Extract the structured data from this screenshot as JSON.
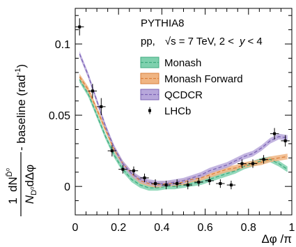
{
  "chart_data": {
    "type": "line",
    "title": "",
    "annotations": {
      "generator": "PYTHIA8",
      "system": "pp,",
      "sqrt": "√s = 7 TeV, 2 <",
      "y": "y",
      "ycut": "< 4"
    },
    "xlabel": "Δφ /π",
    "ylabel_parts": {
      "numer_pre": "1",
      "numer_d": "dN",
      "numer_sup": "D̄⁰",
      "denom": "N",
      "denom_sub": "D⁰",
      "denom_post": "dΔφ",
      "suffix": " - baseline (rad",
      "suffix_sup": "-1",
      "suffix_end": ")"
    },
    "xlim": [
      0,
      1
    ],
    "ylim": [
      -0.02,
      0.125
    ],
    "xticks": [
      {
        "value": 0,
        "label": "0"
      },
      {
        "value": 0.2,
        "label": "0.2"
      },
      {
        "value": 0.4,
        "label": "0.4"
      },
      {
        "value": 0.6,
        "label": "0.6"
      },
      {
        "value": 0.8,
        "label": "0.8"
      },
      {
        "value": 1,
        "label": "1"
      }
    ],
    "yticks": [
      {
        "value": 0,
        "label": "0"
      },
      {
        "value": 0.05,
        "label": "0.05"
      },
      {
        "value": 0.1,
        "label": "0.1"
      }
    ],
    "series": [
      {
        "name": "Monash",
        "color": "#3daa7d",
        "fill": "#7fd1ae",
        "x": [
          0.02,
          0.06,
          0.1,
          0.14,
          0.18,
          0.22,
          0.26,
          0.3,
          0.34,
          0.38,
          0.42,
          0.46,
          0.5,
          0.54,
          0.58,
          0.62,
          0.66,
          0.7,
          0.74,
          0.78,
          0.82,
          0.86,
          0.9,
          0.94,
          0.98
        ],
        "y": [
          0.075,
          0.065,
          0.05,
          0.035,
          0.022,
          0.012,
          0.005,
          0.001,
          -0.001,
          -0.001,
          0.0,
          0.0,
          0.001,
          0.002,
          0.003,
          0.005,
          0.007,
          0.009,
          0.011,
          0.014,
          0.016,
          0.018,
          0.019,
          0.016,
          0.012
        ],
        "band": 0.002
      },
      {
        "name": "Monash Forward",
        "color": "#d97f3b",
        "fill": "#f0b583",
        "x": [
          0.02,
          0.06,
          0.1,
          0.14,
          0.18,
          0.22,
          0.26,
          0.3,
          0.34,
          0.38,
          0.42,
          0.46,
          0.5,
          0.54,
          0.58,
          0.62,
          0.66,
          0.7,
          0.74,
          0.78,
          0.82,
          0.86,
          0.9,
          0.94,
          0.98
        ],
        "y": [
          0.077,
          0.068,
          0.054,
          0.04,
          0.026,
          0.016,
          0.009,
          0.004,
          0.002,
          0.001,
          0.002,
          0.002,
          0.003,
          0.005,
          0.006,
          0.008,
          0.01,
          0.012,
          0.013,
          0.015,
          0.016,
          0.017,
          0.019,
          0.02,
          0.021
        ],
        "band": 0.002
      },
      {
        "name": "QCDCR",
        "color": "#7b63b5",
        "fill": "#b7a7db",
        "x": [
          0.02,
          0.06,
          0.1,
          0.14,
          0.18,
          0.22,
          0.26,
          0.3,
          0.34,
          0.38,
          0.42,
          0.46,
          0.5,
          0.54,
          0.58,
          0.62,
          0.66,
          0.7,
          0.74,
          0.78,
          0.82,
          0.86,
          0.9,
          0.94,
          0.98
        ],
        "y": [
          0.093,
          0.078,
          0.06,
          0.042,
          0.027,
          0.016,
          0.009,
          0.005,
          0.003,
          0.002,
          0.002,
          0.003,
          0.004,
          0.006,
          0.008,
          0.011,
          0.013,
          0.015,
          0.018,
          0.021,
          0.023,
          0.027,
          0.032,
          0.035,
          0.034
        ],
        "band": 0.002
      }
    ],
    "lhcb": {
      "name": "LHCb",
      "x": [
        0.02,
        0.08,
        0.12,
        0.17,
        0.22,
        0.27,
        0.32,
        0.37,
        0.42,
        0.47,
        0.52,
        0.57,
        0.62,
        0.67,
        0.72,
        0.77,
        0.82,
        0.87,
        0.92,
        0.97
      ],
      "y": [
        0.112,
        0.067,
        0.056,
        0.025,
        0.012,
        0.011,
        0.006,
        0.002,
        0.001,
        0.002,
        0.001,
        0.003,
        0.004,
        0.002,
        0.001,
        0.016,
        0.016,
        0.019,
        0.037,
        0.032
      ],
      "yerr": [
        0.006,
        0.005,
        0.006,
        0.004,
        0.003,
        0.003,
        0.003,
        0.003,
        0.003,
        0.003,
        0.003,
        0.003,
        0.003,
        0.003,
        0.003,
        0.003,
        0.003,
        0.003,
        0.004,
        0.004
      ],
      "xerr": 0.02
    },
    "legend": {
      "placement": "top-right",
      "entries": [
        "Monash",
        "Monash Forward",
        "QCDCR",
        "LHCb"
      ]
    }
  }
}
